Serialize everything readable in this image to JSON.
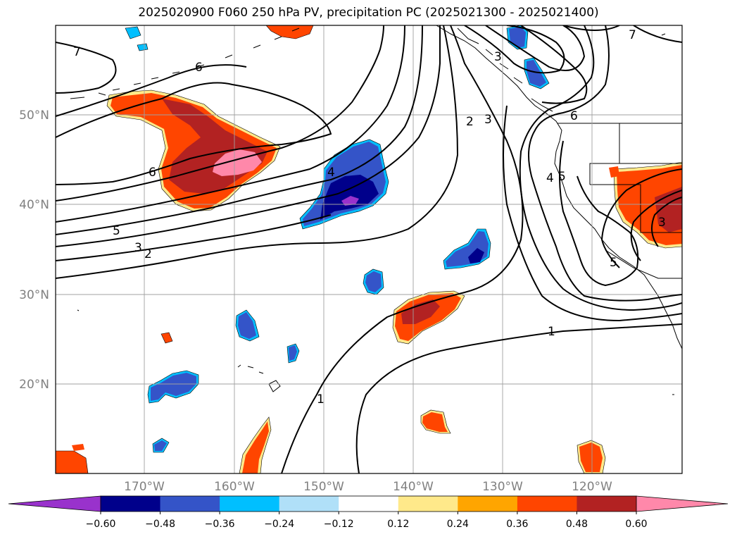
{
  "title": "2025020900 F060 250 hPa PV, precipitation PC (2025021300 - 2025021400)",
  "lat_labels": [
    "50°N",
    "40°N",
    "30°N",
    "20°N"
  ],
  "lon_labels": [
    "170°W",
    "160°W",
    "150°W",
    "140°W",
    "130°W",
    "120°W"
  ],
  "colorbar": {
    "ticks": [
      "−0.60",
      "−0.48",
      "−0.36",
      "−0.24",
      "−0.12",
      "0.12",
      "0.24",
      "0.36",
      "0.48",
      "0.60"
    ],
    "colors": [
      "#9932cc",
      "#00008b",
      "#3454c8",
      "#00bfff",
      "#b0e0f8",
      "#ffffff",
      "#ffe98a",
      "#ffa500",
      "#ff4500",
      "#b22222",
      "#ff88aa"
    ]
  },
  "contour_labels": [
    "7",
    "6",
    "6",
    "5",
    "3",
    "2",
    "4",
    "2",
    "3",
    "6",
    "4",
    "5",
    "3",
    "5",
    "1",
    "1",
    "7",
    "3"
  ]
}
